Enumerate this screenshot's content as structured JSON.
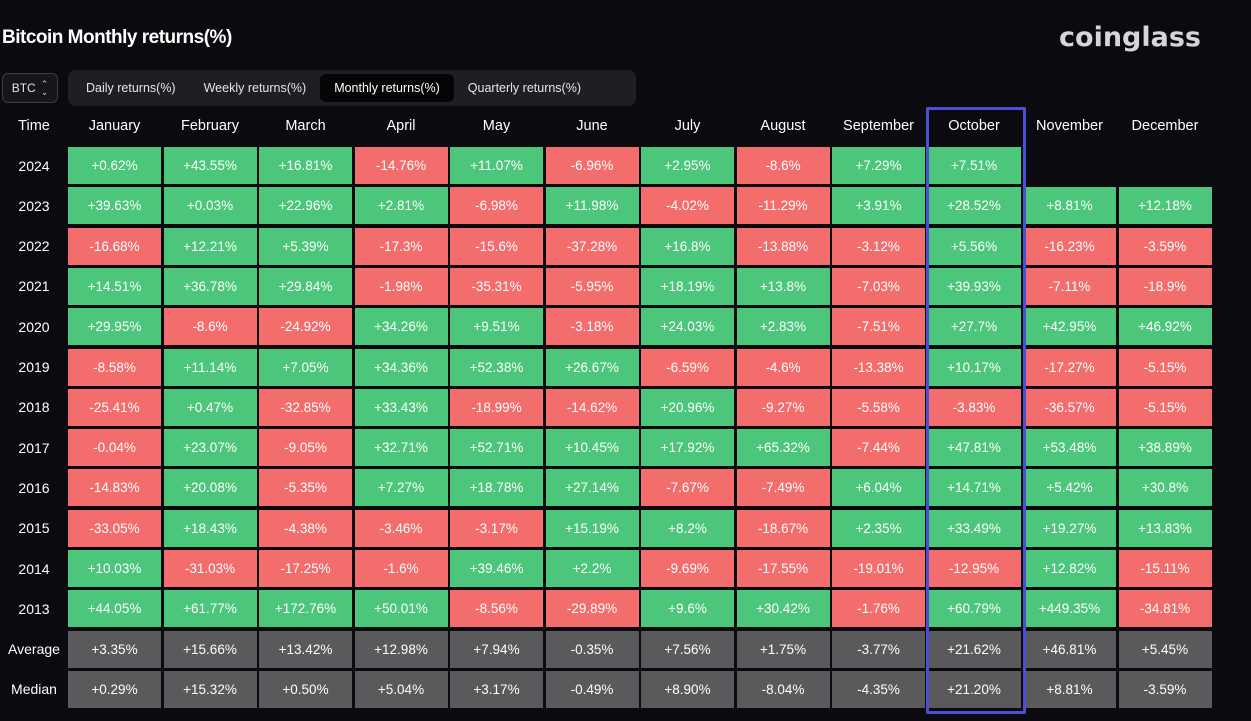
{
  "header": {
    "title": "Bitcoin Monthly returns(%)",
    "brand": "coinglass",
    "asset": "BTC",
    "tabs": [
      {
        "label": "Daily returns(%)",
        "active": false
      },
      {
        "label": "Weekly returns(%)",
        "active": false
      },
      {
        "label": "Monthly returns(%)",
        "active": true
      },
      {
        "label": "Quarterly returns(%)",
        "active": false
      }
    ]
  },
  "colors": {
    "positive": "#4bc67a",
    "negative": "#f46d6d",
    "stat": "#5a5a5c",
    "highlight": "#4b4fd6"
  },
  "chart_data": {
    "type": "table",
    "row_header": "Time",
    "columns": [
      "January",
      "February",
      "March",
      "April",
      "May",
      "June",
      "July",
      "August",
      "September",
      "October",
      "November",
      "December"
    ],
    "highlighted_column": "October",
    "rows": [
      {
        "label": "2024",
        "kind": "year",
        "values": [
          "+0.62%",
          "+43.55%",
          "+16.81%",
          "-14.76%",
          "+11.07%",
          "-6.96%",
          "+2.95%",
          "-8.6%",
          "+7.29%",
          "+7.51%",
          null,
          null
        ]
      },
      {
        "label": "2023",
        "kind": "year",
        "values": [
          "+39.63%",
          "+0.03%",
          "+22.96%",
          "+2.81%",
          "-6.98%",
          "+11.98%",
          "-4.02%",
          "-11.29%",
          "+3.91%",
          "+28.52%",
          "+8.81%",
          "+12.18%"
        ]
      },
      {
        "label": "2022",
        "kind": "year",
        "values": [
          "-16.68%",
          "+12.21%",
          "+5.39%",
          "-17.3%",
          "-15.6%",
          "-37.28%",
          "+16.8%",
          "-13.88%",
          "-3.12%",
          "+5.56%",
          "-16.23%",
          "-3.59%"
        ]
      },
      {
        "label": "2021",
        "kind": "year",
        "values": [
          "+14.51%",
          "+36.78%",
          "+29.84%",
          "-1.98%",
          "-35.31%",
          "-5.95%",
          "+18.19%",
          "+13.8%",
          "-7.03%",
          "+39.93%",
          "-7.11%",
          "-18.9%"
        ]
      },
      {
        "label": "2020",
        "kind": "year",
        "values": [
          "+29.95%",
          "-8.6%",
          "-24.92%",
          "+34.26%",
          "+9.51%",
          "-3.18%",
          "+24.03%",
          "+2.83%",
          "-7.51%",
          "+27.7%",
          "+42.95%",
          "+46.92%"
        ]
      },
      {
        "label": "2019",
        "kind": "year",
        "values": [
          "-8.58%",
          "+11.14%",
          "+7.05%",
          "+34.36%",
          "+52.38%",
          "+26.67%",
          "-6.59%",
          "-4.6%",
          "-13.38%",
          "+10.17%",
          "-17.27%",
          "-5.15%"
        ]
      },
      {
        "label": "2018",
        "kind": "year",
        "values": [
          "-25.41%",
          "+0.47%",
          "-32.85%",
          "+33.43%",
          "-18.99%",
          "-14.62%",
          "+20.96%",
          "-9.27%",
          "-5.58%",
          "-3.83%",
          "-36.57%",
          "-5.15%"
        ]
      },
      {
        "label": "2017",
        "kind": "year",
        "values": [
          "-0.04%",
          "+23.07%",
          "-9.05%",
          "+32.71%",
          "+52.71%",
          "+10.45%",
          "+17.92%",
          "+65.32%",
          "-7.44%",
          "+47.81%",
          "+53.48%",
          "+38.89%"
        ]
      },
      {
        "label": "2016",
        "kind": "year",
        "values": [
          "-14.83%",
          "+20.08%",
          "-5.35%",
          "+7.27%",
          "+18.78%",
          "+27.14%",
          "-7.67%",
          "-7.49%",
          "+6.04%",
          "+14.71%",
          "+5.42%",
          "+30.8%"
        ]
      },
      {
        "label": "2015",
        "kind": "year",
        "values": [
          "-33.05%",
          "+18.43%",
          "-4.38%",
          "-3.46%",
          "-3.17%",
          "+15.19%",
          "+8.2%",
          "-18.67%",
          "+2.35%",
          "+33.49%",
          "+19.27%",
          "+13.83%"
        ]
      },
      {
        "label": "2014",
        "kind": "year",
        "values": [
          "+10.03%",
          "-31.03%",
          "-17.25%",
          "-1.6%",
          "+39.46%",
          "+2.2%",
          "-9.69%",
          "-17.55%",
          "-19.01%",
          "-12.95%",
          "+12.82%",
          "-15.11%"
        ]
      },
      {
        "label": "2013",
        "kind": "year",
        "values": [
          "+44.05%",
          "+61.77%",
          "+172.76%",
          "+50.01%",
          "-8.56%",
          "-29.89%",
          "+9.6%",
          "+30.42%",
          "-1.76%",
          "+60.79%",
          "+449.35%",
          "-34.81%"
        ]
      },
      {
        "label": "Average",
        "kind": "stat",
        "values": [
          "+3.35%",
          "+15.66%",
          "+13.42%",
          "+12.98%",
          "+7.94%",
          "-0.35%",
          "+7.56%",
          "+1.75%",
          "-3.77%",
          "+21.62%",
          "+46.81%",
          "+5.45%"
        ]
      },
      {
        "label": "Median",
        "kind": "stat",
        "values": [
          "+0.29%",
          "+15.32%",
          "+0.50%",
          "+5.04%",
          "+3.17%",
          "-0.49%",
          "+8.90%",
          "-8.04%",
          "-4.35%",
          "+21.20%",
          "+8.81%",
          "-3.59%"
        ]
      }
    ]
  }
}
